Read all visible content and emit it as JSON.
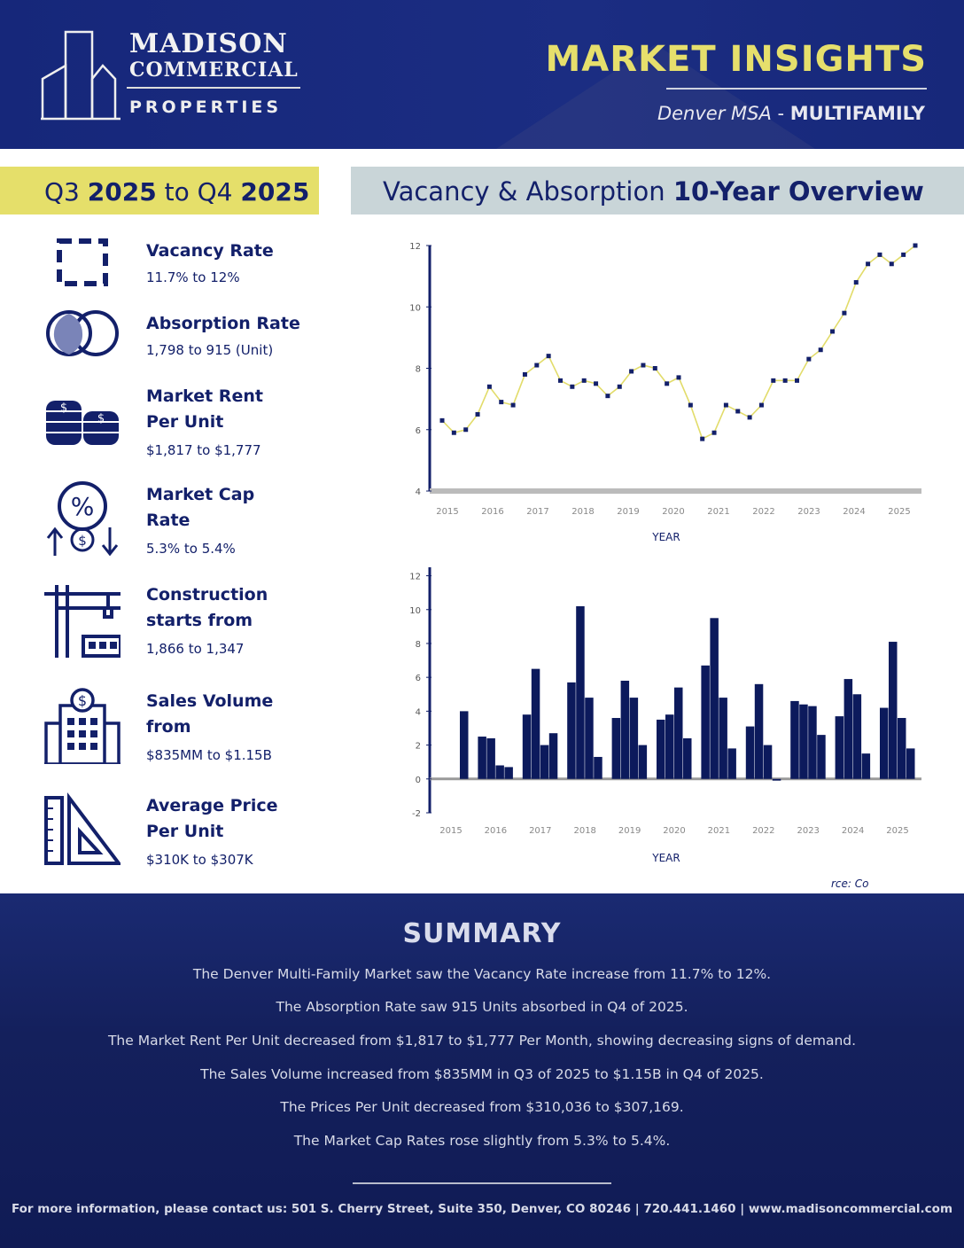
{
  "header": {
    "logo": {
      "line1": "MADISON",
      "line2": "COMMERCIAL",
      "line3": "PROPERTIES"
    },
    "title": "MARKET INSIGHTS",
    "subtitle_region": "Denver MSA",
    "subtitle_sep": " - ",
    "subtitle_type": "MULTIFAMILY"
  },
  "bands": {
    "q_a": "Q3",
    "y_a": "2025",
    "to": "to",
    "q_b": "Q4",
    "y_b": "2025",
    "overview_a": "Vacancy & Absorption",
    "overview_b": "10-Year Overview"
  },
  "stats": [
    {
      "icon": "vacancy-icon",
      "label": "Vacancy Rate",
      "value": "11.7% to 12%"
    },
    {
      "icon": "absorption-icon",
      "label": "Absorption Rate",
      "value": "1,798 to 915 (Unit)"
    },
    {
      "icon": "coins-icon",
      "label": "Market Rent Per Unit",
      "value": "$1,817 to $1,777"
    },
    {
      "icon": "cap-rate-icon",
      "label": "Market Cap Rate",
      "value": "5.3% to 5.4%"
    },
    {
      "icon": "crane-icon",
      "label": "Construction starts from",
      "value": "1,866 to 1,347"
    },
    {
      "icon": "bank-building-icon",
      "label": "Sales Volume from",
      "value": "$835MM to $1.15B"
    },
    {
      "icon": "ruler-triangle-icon",
      "label": "Average Price Per Unit",
      "value": "$310K to $307K"
    }
  ],
  "chart_data": [
    {
      "type": "line",
      "title": "Vacancy",
      "xlabel": "YEAR",
      "ylabel": "",
      "x_ticks": [
        "2015",
        "2016",
        "2017",
        "2018",
        "2019",
        "2020",
        "2021",
        "2022",
        "2023",
        "2024",
        "2025"
      ],
      "ylim": [
        4,
        12
      ],
      "y_ticks": [
        4,
        6,
        8,
        10,
        12
      ],
      "values": [
        6.3,
        5.9,
        6.0,
        6.5,
        7.4,
        6.9,
        6.8,
        7.8,
        8.1,
        8.4,
        7.6,
        7.4,
        7.6,
        7.5,
        7.1,
        7.4,
        7.9,
        8.1,
        8.0,
        7.5,
        7.7,
        6.8,
        5.7,
        5.9,
        6.8,
        6.6,
        6.4,
        6.8,
        7.6,
        7.6,
        7.6,
        8.3,
        8.6,
        9.2,
        9.8,
        10.8,
        11.4,
        11.7,
        11.4,
        11.7,
        12.0
      ],
      "color": "#e2dc6a",
      "marker_color": "#13206a"
    },
    {
      "type": "bar",
      "title": "Absorption",
      "xlabel": "YEAR",
      "ylabel": "",
      "categories": [
        "2015",
        "2016",
        "2017",
        "2018",
        "2019",
        "2020",
        "2021",
        "2022",
        "2023",
        "2024",
        "2025"
      ],
      "ylim": [
        -2,
        12.5
      ],
      "y_ticks": [
        -2,
        0,
        2,
        4,
        6,
        8,
        10,
        12
      ],
      "series_by_quarter": [
        [
          0,
          0,
          0,
          4.0
        ],
        [
          2.5,
          2.4,
          0.8,
          0.7
        ],
        [
          3.8,
          6.5,
          2.0,
          2.7
        ],
        [
          5.7,
          10.2,
          4.8,
          1.3
        ],
        [
          3.6,
          5.8,
          4.8,
          2.0
        ],
        [
          3.5,
          3.8,
          5.4,
          2.4
        ],
        [
          6.7,
          9.5,
          4.8,
          1.8
        ],
        [
          3.1,
          5.6,
          2.0,
          -0.1
        ],
        [
          4.6,
          4.4,
          4.3,
          2.6
        ],
        [
          3.7,
          5.9,
          5.0,
          1.5
        ],
        [
          4.2,
          8.1,
          3.6,
          1.8
        ]
      ],
      "color": "#0c1a5c"
    }
  ],
  "source": "rce: Co",
  "summary": {
    "title": "SUMMARY",
    "lines": [
      "The Denver Multi-Family Market saw the Vacancy Rate increase from 11.7% to 12%.",
      "The Absorption Rate saw 915 Units absorbed in Q4 of 2025.",
      "The Market Rent Per Unit decreased from $1,817 to $1,777 Per Month, showing decreasing signs of demand.",
      "The Sales Volume increased from $835MM in Q3 of 2025 to $1.15B in Q4 of 2025.",
      "The Prices Per Unit decreased from $310,036 to $307,169.",
      "The Market Cap Rates rose slightly from 5.3% to 5.4%."
    ]
  },
  "footer": "For more information, please contact us:  501 S. Cherry Street, Suite 350, Denver, CO 80246  |  720.441.1460  |  www.madisoncommercial.com"
}
